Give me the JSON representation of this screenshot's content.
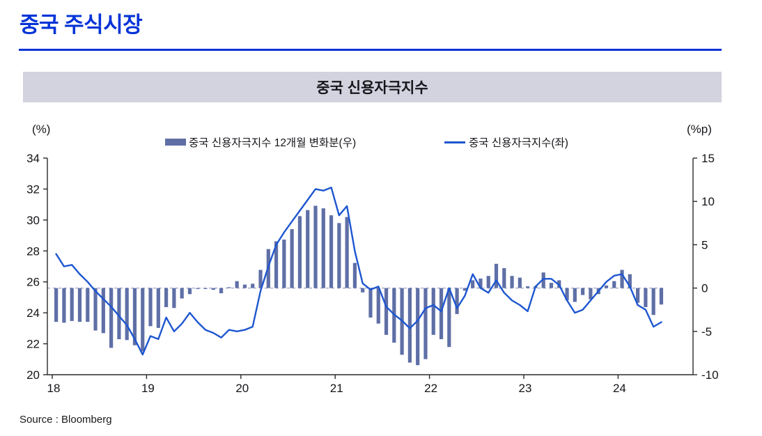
{
  "header": {
    "title": "중국 주식시장"
  },
  "banner": {
    "title": "중국 신용자극지수"
  },
  "source": "Source : Bloomberg",
  "colors": {
    "accent_blue": "#0433d8",
    "line_blue": "#1d56d0",
    "bar_slate": "#5f6fa6",
    "banner_bg": "#d2d3df",
    "zero_dash": "#9aa5c5",
    "axis": "#2a2a2e",
    "tick_text": "#141418"
  },
  "chart_data": {
    "type": "combo (bar + line, dual axis)",
    "title": "중국 신용자극지수",
    "frequency": "monthly",
    "start_month": "2018-01",
    "end_month": "2024-06",
    "x_tick_labels": [
      "18",
      "19",
      "20",
      "21",
      "22",
      "23",
      "24"
    ],
    "left_axis": {
      "unit": "(%)",
      "ticks": [
        34,
        32,
        30,
        28,
        26,
        24,
        22,
        20
      ],
      "range": [
        20,
        34
      ]
    },
    "right_axis": {
      "unit": "(%p)",
      "ticks": [
        15,
        10,
        5,
        0,
        -5,
        -10
      ],
      "range": [
        -10,
        15
      ]
    },
    "zero_line": {
      "axis": "right",
      "value": 0,
      "style": "dashed"
    },
    "legend_position": "top",
    "grid": "off",
    "series": [
      {
        "name": "중국 신용자극지수 12개월 변화분(우)",
        "type": "bar",
        "axis": "right",
        "values": [
          -3.9,
          -4.0,
          -3.8,
          -3.9,
          -3.9,
          -4.9,
          -5.2,
          -6.9,
          -5.9,
          -6.0,
          -6.6,
          -7.3,
          -4.4,
          -4.6,
          -2.2,
          -2.3,
          -1.2,
          -0.7,
          -0.1,
          -0.1,
          -0.2,
          -0.6,
          0.1,
          0.8,
          0.4,
          0.5,
          2.1,
          4.5,
          5.4,
          5.6,
          6.8,
          8.3,
          9.0,
          9.5,
          9.2,
          8.4,
          7.5,
          8.2,
          2.9,
          -0.5,
          -3.4,
          -4.1,
          -5.4,
          -6.3,
          -7.7,
          -8.6,
          -8.9,
          -8.2,
          -5.4,
          -5.9,
          -6.8,
          -3.0,
          -0.3,
          0.9,
          1.1,
          1.4,
          2.8,
          2.3,
          1.4,
          1.2,
          0.2,
          0.2,
          1.8,
          0.6,
          0.9,
          -1.4,
          -1.6,
          -0.8,
          -1.3,
          -0.7,
          0.3,
          0.8,
          2.1,
          1.6,
          -1.7,
          -2.2,
          -3.1,
          -1.9
        ]
      },
      {
        "name": "중국 신용자극지수(좌)",
        "type": "line",
        "axis": "left",
        "values": [
          27.8,
          27.0,
          27.1,
          26.5,
          26.0,
          25.4,
          24.9,
          24.4,
          23.8,
          23.2,
          22.3,
          21.3,
          22.5,
          22.3,
          23.7,
          22.8,
          23.3,
          24.0,
          23.4,
          22.9,
          22.7,
          22.4,
          22.9,
          22.8,
          22.9,
          23.1,
          25.4,
          27.0,
          28.4,
          29.2,
          29.9,
          30.6,
          31.3,
          32.0,
          31.9,
          32.1,
          30.3,
          30.9,
          28.0,
          25.9,
          25.5,
          25.7,
          24.4,
          23.9,
          23.5,
          23.0,
          23.5,
          24.3,
          24.5,
          24.1,
          25.6,
          24.3,
          25.1,
          26.5,
          25.6,
          25.3,
          26.1,
          25.3,
          24.8,
          24.5,
          24.1,
          25.7,
          26.2,
          26.2,
          25.8,
          24.8,
          24.0,
          24.2,
          24.8,
          25.4,
          26.0,
          26.4,
          26.5,
          25.7,
          24.5,
          24.2,
          23.1,
          23.4
        ]
      }
    ]
  }
}
